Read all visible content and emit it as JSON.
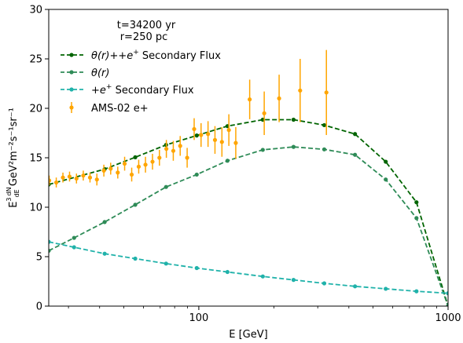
{
  "chart_data": {
    "type": "line",
    "xlabel": "E [GeV]",
    "ylabel_main": "E",
    "ylabel_sup": "3",
    "ylabel_frac_num": "dN",
    "ylabel_frac_den": "dE",
    "ylabel_units": " GeV²m⁻²s⁻¹sr⁻¹",
    "xscale": "log",
    "xlim": [
      25,
      1000
    ],
    "ylim": [
      0,
      30
    ],
    "x_ticks": [
      {
        "value": 100,
        "label": "100"
      },
      {
        "value": 1000,
        "label": "1000"
      }
    ],
    "y_ticks": [
      {
        "value": 0,
        "label": "0"
      },
      {
        "value": 5,
        "label": "5"
      },
      {
        "value": 10,
        "label": "10"
      },
      {
        "value": 15,
        "label": "15"
      },
      {
        "value": 20,
        "label": "20"
      },
      {
        "value": 25,
        "label": "25"
      },
      {
        "value": 30,
        "label": "30"
      }
    ],
    "annotations": [
      {
        "line1": "t=34200 yr",
        "line2": "r=250 pc"
      }
    ],
    "legend_position": "upper-left",
    "legend": [
      {
        "label": "θ(r)++e⁺ Secondary Flux",
        "label_prefix": "θ(r)++",
        "label_e": "e",
        "label_sup": "+",
        "label_suffix": " Secondary Flux",
        "color": "#006400",
        "style": "dashed-marker"
      },
      {
        "label": "θ(r)",
        "label_prefix": "θ(r)",
        "label_e": "",
        "label_sup": "",
        "label_suffix": "",
        "color": "#2e8b57",
        "style": "dashed-marker"
      },
      {
        "label": "+e⁺ Secondary Flux",
        "label_prefix": "+",
        "label_e": "e",
        "label_sup": "+",
        "label_suffix": " Secondary Flux",
        "color": "#20b2aa",
        "style": "dashed-marker"
      },
      {
        "label": "AMS-02 e+",
        "label_prefix": "AMS-02 e+",
        "label_e": "",
        "label_sup": "",
        "label_suffix": "",
        "color": "#ffa500",
        "style": "errorbar"
      }
    ],
    "series": [
      {
        "color": "#006400",
        "points": [
          {
            "x": 25,
            "y": 12.3
          },
          {
            "x": 41.9,
            "y": 13.85
          },
          {
            "x": 55.6,
            "y": 15.05
          },
          {
            "x": 73.9,
            "y": 16.3
          },
          {
            "x": 98.1,
            "y": 17.25
          },
          {
            "x": 130.3,
            "y": 18.2
          },
          {
            "x": 180.6,
            "y": 18.85
          },
          {
            "x": 239.9,
            "y": 18.85
          },
          {
            "x": 318.6,
            "y": 18.3
          },
          {
            "x": 423.3,
            "y": 17.4
          },
          {
            "x": 562.3,
            "y": 14.6
          },
          {
            "x": 746.9,
            "y": 10.5
          },
          {
            "x": 1000,
            "y": 0
          }
        ]
      },
      {
        "color": "#2e8b57",
        "points": [
          {
            "x": 25,
            "y": 5.6
          },
          {
            "x": 31.6,
            "y": 6.9
          },
          {
            "x": 41.9,
            "y": 8.5
          },
          {
            "x": 55.6,
            "y": 10.25
          },
          {
            "x": 73.9,
            "y": 12.05
          },
          {
            "x": 98.1,
            "y": 13.3
          },
          {
            "x": 130.3,
            "y": 14.7
          },
          {
            "x": 180.6,
            "y": 15.8
          },
          {
            "x": 239.9,
            "y": 16.1
          },
          {
            "x": 318.6,
            "y": 15.85
          },
          {
            "x": 423.3,
            "y": 15.3
          },
          {
            "x": 562.3,
            "y": 12.8
          },
          {
            "x": 746.9,
            "y": 8.9
          },
          {
            "x": 1000,
            "y": 0
          }
        ]
      },
      {
        "color": "#20b2aa",
        "points": [
          {
            "x": 25,
            "y": 6.5
          },
          {
            "x": 31.6,
            "y": 5.95
          },
          {
            "x": 41.9,
            "y": 5.3
          },
          {
            "x": 55.6,
            "y": 4.8
          },
          {
            "x": 73.9,
            "y": 4.3
          },
          {
            "x": 98.1,
            "y": 3.85
          },
          {
            "x": 130.3,
            "y": 3.45
          },
          {
            "x": 180.6,
            "y": 3.0
          },
          {
            "x": 239.9,
            "y": 2.65
          },
          {
            "x": 318.6,
            "y": 2.3
          },
          {
            "x": 423.3,
            "y": 2.0
          },
          {
            "x": 562.3,
            "y": 1.75
          },
          {
            "x": 746.9,
            "y": 1.5
          },
          {
            "x": 1000,
            "y": 1.3
          }
        ]
      }
    ],
    "errorbar_series": {
      "color": "#ffa500",
      "points": [
        {
          "x": 25.1,
          "y": 12.7,
          "err": 0.5
        },
        {
          "x": 26.8,
          "y": 12.5,
          "err": 0.5
        },
        {
          "x": 28.5,
          "y": 13.0,
          "err": 0.5
        },
        {
          "x": 30.3,
          "y": 13.1,
          "err": 0.5
        },
        {
          "x": 32.3,
          "y": 12.9,
          "err": 0.5
        },
        {
          "x": 34.4,
          "y": 13.2,
          "err": 0.5
        },
        {
          "x": 36.6,
          "y": 13.0,
          "err": 0.5
        },
        {
          "x": 39.0,
          "y": 12.8,
          "err": 0.6
        },
        {
          "x": 41.6,
          "y": 13.7,
          "err": 0.6
        },
        {
          "x": 44.3,
          "y": 13.9,
          "err": 0.6
        },
        {
          "x": 47.3,
          "y": 13.5,
          "err": 0.6
        },
        {
          "x": 50.4,
          "y": 14.4,
          "err": 0.7
        },
        {
          "x": 53.8,
          "y": 13.3,
          "err": 0.7
        },
        {
          "x": 57.4,
          "y": 14.1,
          "err": 0.7
        },
        {
          "x": 61.1,
          "y": 14.3,
          "err": 0.8
        },
        {
          "x": 65.2,
          "y": 14.6,
          "err": 0.8
        },
        {
          "x": 69.5,
          "y": 15.0,
          "err": 0.8
        },
        {
          "x": 74.1,
          "y": 15.9,
          "err": 0.9
        },
        {
          "x": 79.0,
          "y": 15.7,
          "err": 1.0
        },
        {
          "x": 84.2,
          "y": 16.2,
          "err": 1.0
        },
        {
          "x": 89.8,
          "y": 15.0,
          "err": 1.0
        },
        {
          "x": 95.8,
          "y": 17.9,
          "err": 1.1
        },
        {
          "x": 102.1,
          "y": 17.3,
          "err": 1.2
        },
        {
          "x": 108.9,
          "y": 17.4,
          "err": 1.3
        },
        {
          "x": 116.1,
          "y": 16.8,
          "err": 1.4
        },
        {
          "x": 123.8,
          "y": 16.6,
          "err": 1.5
        },
        {
          "x": 132.0,
          "y": 17.8,
          "err": 1.6
        },
        {
          "x": 140.7,
          "y": 16.5,
          "err": 1.6
        },
        {
          "x": 160.0,
          "y": 20.9,
          "err": 2.0
        },
        {
          "x": 183.0,
          "y": 19.5,
          "err": 2.2
        },
        {
          "x": 210.0,
          "y": 21.0,
          "err": 2.4
        },
        {
          "x": 255.0,
          "y": 21.8,
          "err": 3.2
        },
        {
          "x": 325.0,
          "y": 21.6,
          "err": 4.3
        }
      ]
    }
  }
}
